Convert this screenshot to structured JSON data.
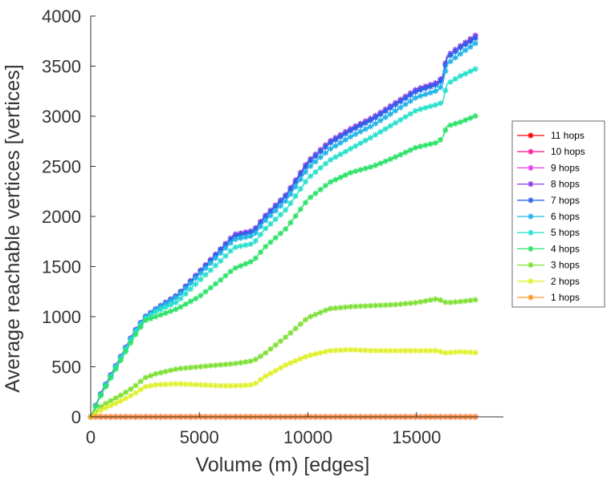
{
  "chart_data": {
    "type": "line",
    "xlabel": "Volume (m) [edges]",
    "ylabel": "Average reachable vertices [vertices]",
    "xlim": [
      0,
      19000
    ],
    "ylim": [
      0,
      4000
    ],
    "xticks": [
      0,
      5000,
      10000,
      15000
    ],
    "xtick_labels": [
      "0",
      "5000",
      "10000",
      "15000"
    ],
    "yticks": [
      0,
      500,
      1000,
      1500,
      2000,
      2500,
      3000,
      3500,
      4000
    ],
    "ytick_labels": [
      "0",
      "500",
      "1000",
      "1500",
      "2000",
      "2500",
      "3000",
      "3500",
      "4000"
    ],
    "grid": false,
    "legend_position": "right",
    "marker": "asterisk",
    "x": [
      0,
      500,
      1000,
      1500,
      2000,
      2500,
      3000,
      4000,
      5000,
      6000,
      6600,
      7500,
      8000,
      9000,
      10000,
      11000,
      12000,
      13000,
      14000,
      15000,
      16000,
      16200,
      16400,
      17000,
      17800
    ],
    "series": [
      {
        "name": "11 hops",
        "color": "#ff0000",
        "values": [
          0,
          0,
          0,
          0,
          0,
          0,
          0,
          0,
          0,
          0,
          0,
          0,
          0,
          0,
          0,
          0,
          0,
          0,
          0,
          0,
          0,
          0,
          0,
          0,
          0
        ]
      },
      {
        "name": "10 hops",
        "color": "#ff1f9a",
        "values": [
          0,
          0,
          0,
          0,
          0,
          0,
          0,
          0,
          0,
          0,
          0,
          0,
          0,
          0,
          0,
          0,
          0,
          0,
          0,
          0,
          0,
          0,
          0,
          0,
          0
        ]
      },
      {
        "name": "9 hops",
        "color": "#e53ae5",
        "values": [
          0,
          0,
          0,
          0,
          0,
          0,
          0,
          0,
          0,
          0,
          0,
          0,
          0,
          0,
          0,
          0,
          0,
          0,
          0,
          0,
          0,
          0,
          0,
          0,
          0
        ]
      },
      {
        "name": "8 hops",
        "color": "#8a3ce6",
        "values": [
          0,
          250,
          450,
          650,
          850,
          1000,
          1080,
          1220,
          1450,
          1680,
          1820,
          1860,
          2000,
          2220,
          2550,
          2750,
          2880,
          2990,
          3130,
          3270,
          3340,
          3400,
          3600,
          3700,
          3820
        ]
      },
      {
        "name": "7 hops",
        "color": "#2a63e8",
        "values": [
          0,
          245,
          445,
          645,
          845,
          995,
          1075,
          1215,
          1440,
          1670,
          1800,
          1845,
          1985,
          2205,
          2530,
          2730,
          2860,
          2970,
          3110,
          3250,
          3320,
          3380,
          3580,
          3680,
          3790
        ]
      },
      {
        "name": "6 hops",
        "color": "#22b4e8",
        "values": [
          0,
          240,
          440,
          640,
          840,
          990,
          1070,
          1200,
          1420,
          1640,
          1770,
          1810,
          1950,
          2160,
          2480,
          2670,
          2800,
          2910,
          3050,
          3190,
          3260,
          3320,
          3520,
          3620,
          3740
        ]
      },
      {
        "name": "5 hops",
        "color": "#29e0cc",
        "values": [
          0,
          235,
          435,
          630,
          830,
          980,
          1050,
          1150,
          1360,
          1560,
          1690,
          1730,
          1870,
          2070,
          2380,
          2560,
          2680,
          2800,
          2930,
          3060,
          3120,
          3140,
          3320,
          3400,
          3480
        ]
      },
      {
        "name": "4 hops",
        "color": "#2de26a",
        "values": [
          0,
          230,
          420,
          610,
          800,
          960,
          1000,
          1080,
          1200,
          1370,
          1480,
          1560,
          1690,
          1880,
          2170,
          2340,
          2440,
          2500,
          2590,
          2690,
          2740,
          2790,
          2900,
          2940,
          3010
        ]
      },
      {
        "name": "3 hops",
        "color": "#7fe035",
        "values": [
          0,
          110,
          170,
          230,
          300,
          390,
          430,
          480,
          500,
          520,
          530,
          560,
          630,
          800,
          990,
          1080,
          1100,
          1110,
          1120,
          1140,
          1180,
          1150,
          1140,
          1150,
          1170
        ]
      },
      {
        "name": "2 hops",
        "color": "#e0f02c",
        "values": [
          0,
          70,
          120,
          170,
          230,
          300,
          320,
          330,
          320,
          310,
          310,
          320,
          400,
          520,
          610,
          660,
          670,
          660,
          660,
          660,
          660,
          640,
          640,
          650,
          640
        ]
      },
      {
        "name": "1 hops",
        "color": "#ff9a2c",
        "values": [
          0,
          0,
          0,
          0,
          0,
          0,
          0,
          0,
          0,
          0,
          0,
          0,
          0,
          0,
          0,
          0,
          0,
          0,
          0,
          0,
          0,
          0,
          0,
          0,
          0
        ]
      }
    ]
  }
}
